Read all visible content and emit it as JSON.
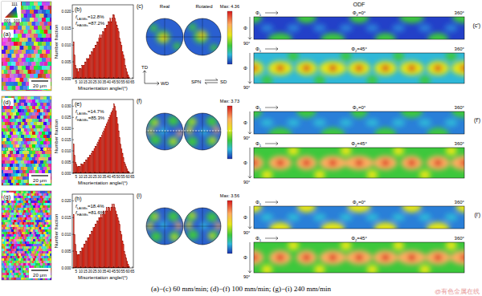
{
  "chart_data": [
    {
      "type": "histogram",
      "title": "(b)",
      "x_label": "Misorientation angle/(°)",
      "y_label": "Number fraction",
      "color": "#e02818",
      "annotations": [
        {
          "sym": "f",
          "sub": "LAGBs",
          "rest": "=12.8%"
        },
        {
          "sym": "f",
          "sub": "HAGBs",
          "rest": "=87.2%"
        }
      ],
      "bins": [
        2,
        3,
        4,
        5,
        6,
        7,
        8,
        9,
        10,
        11,
        12,
        13,
        14,
        15,
        16,
        17,
        18,
        19,
        20,
        21,
        22,
        23,
        24,
        25,
        26,
        27,
        28,
        29,
        30,
        31,
        32,
        33,
        34,
        35,
        36,
        37,
        38,
        39,
        40,
        41,
        42,
        43,
        44,
        45,
        46,
        47,
        48,
        49,
        50,
        51,
        52,
        53,
        54,
        55,
        56,
        57,
        58,
        59,
        60,
        61,
        62
      ],
      "values": [
        0.011,
        0.007,
        0.004,
        0.003,
        0.003,
        0.002,
        0.003,
        0.003,
        0.003,
        0.004,
        0.004,
        0.004,
        0.005,
        0.005,
        0.006,
        0.006,
        0.006,
        0.007,
        0.007,
        0.008,
        0.008,
        0.009,
        0.009,
        0.01,
        0.01,
        0.011,
        0.011,
        0.012,
        0.013,
        0.012,
        0.013,
        0.014,
        0.014,
        0.015,
        0.015,
        0.016,
        0.016,
        0.017,
        0.017,
        0.018,
        0.017,
        0.018,
        0.019,
        0.019,
        0.018,
        0.017,
        0.016,
        0.015,
        0.014,
        0.012,
        0.011,
        0.01,
        0.008,
        0.007,
        0.006,
        0.004,
        0.003,
        0.002,
        0.001,
        0.0005
      ],
      "xlim": [
        1,
        66
      ],
      "xticks": [
        5,
        10,
        15,
        20,
        25,
        30,
        35,
        40,
        45,
        50,
        55,
        60,
        65
      ],
      "ylim": [
        0,
        0.022
      ],
      "yticks": [
        {
          "value": 0,
          "label": "0.000"
        },
        {
          "value": 0.005,
          "label": "0.005"
        },
        {
          "value": 0.01,
          "label": "0.010"
        },
        {
          "value": 0.015,
          "label": "0.015"
        },
        {
          "value": 0.02,
          "label": "0.020"
        }
      ]
    },
    {
      "type": "histogram",
      "title": "(e)",
      "x_label": "Misorientation angle/(°)",
      "y_label": "Number fraction",
      "color": "#e02818",
      "annotations": [
        {
          "sym": "f",
          "sub": "LAGBs",
          "rest": "=14.7%"
        },
        {
          "sym": "f",
          "sub": "HAGBs",
          "rest": "=85.3%"
        }
      ],
      "bins": [
        2,
        3,
        4,
        5,
        6,
        7,
        8,
        9,
        10,
        11,
        12,
        13,
        14,
        15,
        16,
        17,
        18,
        19,
        20,
        21,
        22,
        23,
        24,
        25,
        26,
        27,
        28,
        29,
        30,
        31,
        32,
        33,
        34,
        35,
        36,
        37,
        38,
        39,
        40,
        41,
        42,
        43,
        44,
        45,
        46,
        47,
        48,
        49,
        50,
        51,
        52,
        53,
        54,
        55,
        56,
        57,
        58,
        59,
        60,
        61,
        62
      ],
      "values": [
        0.013,
        0.008,
        0.005,
        0.004,
        0.003,
        0.003,
        0.003,
        0.003,
        0.004,
        0.004,
        0.004,
        0.005,
        0.005,
        0.006,
        0.006,
        0.007,
        0.007,
        0.008,
        0.008,
        0.009,
        0.01,
        0.01,
        0.011,
        0.012,
        0.012,
        0.013,
        0.014,
        0.015,
        0.016,
        0.016,
        0.017,
        0.018,
        0.019,
        0.02,
        0.021,
        0.022,
        0.023,
        0.024,
        0.025,
        0.026,
        0.027,
        0.028,
        0.029,
        0.031,
        0.03,
        0.028,
        0.025,
        0.022,
        0.019,
        0.016,
        0.013,
        0.011,
        0.009,
        0.007,
        0.005,
        0.004,
        0.003,
        0.002,
        0.001,
        0.0005
      ],
      "xlim": [
        1,
        66
      ],
      "xticks": [
        5,
        10,
        15,
        20,
        25,
        30,
        35,
        40,
        45,
        50,
        55,
        60,
        65
      ],
      "ylim": [
        0,
        0.033
      ],
      "yticks": [
        {
          "value": 0,
          "label": "0.000"
        },
        {
          "value": 0.005,
          "label": "0.005"
        },
        {
          "value": 0.01,
          "label": "0.010"
        },
        {
          "value": 0.015,
          "label": "0.015"
        },
        {
          "value": 0.02,
          "label": "0.020"
        },
        {
          "value": 0.025,
          "label": "0.025"
        },
        {
          "value": 0.03,
          "label": "0.030"
        }
      ]
    },
    {
      "type": "histogram",
      "title": "(h)",
      "x_label": "Misorientation angle/(°)",
      "y_label": "Number fraction",
      "color": "#e02818",
      "annotations": [
        {
          "sym": "f",
          "sub": "LAGBs",
          "rest": "=18.4%"
        },
        {
          "sym": "f",
          "sub": "HAGBs",
          "rest": "=81.6%"
        }
      ],
      "bins": [
        2,
        3,
        4,
        5,
        6,
        7,
        8,
        9,
        10,
        11,
        12,
        13,
        14,
        15,
        16,
        17,
        18,
        19,
        20,
        21,
        22,
        23,
        24,
        25,
        26,
        27,
        28,
        29,
        30,
        31,
        32,
        33,
        34,
        35,
        36,
        37,
        38,
        39,
        40,
        41,
        42,
        43,
        44,
        45,
        46,
        47,
        48,
        49,
        50,
        51,
        52,
        53,
        54,
        55,
        56,
        57,
        58,
        59,
        60,
        61,
        62
      ],
      "values": [
        0.016,
        0.01,
        0.007,
        0.005,
        0.004,
        0.004,
        0.004,
        0.005,
        0.005,
        0.006,
        0.006,
        0.007,
        0.007,
        0.008,
        0.008,
        0.009,
        0.009,
        0.01,
        0.01,
        0.011,
        0.011,
        0.012,
        0.012,
        0.013,
        0.013,
        0.014,
        0.014,
        0.015,
        0.015,
        0.016,
        0.015,
        0.016,
        0.017,
        0.016,
        0.017,
        0.018,
        0.017,
        0.018,
        0.018,
        0.017,
        0.018,
        0.019,
        0.018,
        0.019,
        0.018,
        0.017,
        0.016,
        0.015,
        0.014,
        0.013,
        0.011,
        0.01,
        0.008,
        0.007,
        0.005,
        0.004,
        0.003,
        0.002,
        0.001,
        0.0005
      ],
      "xlim": [
        1,
        66
      ],
      "xticks": [
        5,
        10,
        15,
        20,
        25,
        30,
        35,
        40,
        45,
        50,
        55,
        60,
        65
      ],
      "ylim": [
        0,
        0.022
      ],
      "yticks": [
        {
          "value": 0,
          "label": "0.000"
        },
        {
          "value": 0.005,
          "label": "0.005"
        },
        {
          "value": 0.01,
          "label": "0.010"
        },
        {
          "value": 0.015,
          "label": "0.015"
        },
        {
          "value": 0.02,
          "label": "0.020"
        }
      ]
    }
  ],
  "maps": [
    {
      "label": "(a)",
      "scale": "20 μm"
    },
    {
      "label": "(d)",
      "scale": "20 μm"
    },
    {
      "label": "(g)",
      "scale": "20 μm"
    }
  ],
  "ipf_key": {
    "top": "111",
    "left": "001",
    "right": "101"
  },
  "pole_figures": {
    "real": "Real",
    "rotated": "Rotated",
    "max_label": "Max:",
    "panels": [
      {
        "label": "(c)",
        "max": 4.36
      },
      {
        "label": "(f)",
        "max": 3.73
      },
      {
        "label": "(i)",
        "max": 3.56
      }
    ],
    "axes": {
      "td": "TD",
      "wd": "WD",
      "spn": "SPN",
      "sd": "SD"
    }
  },
  "odf": {
    "title": "ODF",
    "phi1": {
      "sym": "Φ",
      "sub": "1"
    },
    "phi": "Φ",
    "x_end": "360°",
    "y_end": "90°",
    "sections": [
      {
        "sym": "Φ",
        "sub": "2",
        "rest": "=0°"
      },
      {
        "sym": "Φ",
        "sub": "2",
        "rest": "=45°"
      }
    ],
    "panels": [
      {
        "label": "(c′)"
      },
      {
        "label": "(f′)"
      },
      {
        "label": "(i′)"
      }
    ]
  },
  "caption": "(a)−(c) 60 mm/min; (d)−(f) 100 mm/min; (g)−(i) 240 mm/min",
  "watermark": "@有色金属在线"
}
